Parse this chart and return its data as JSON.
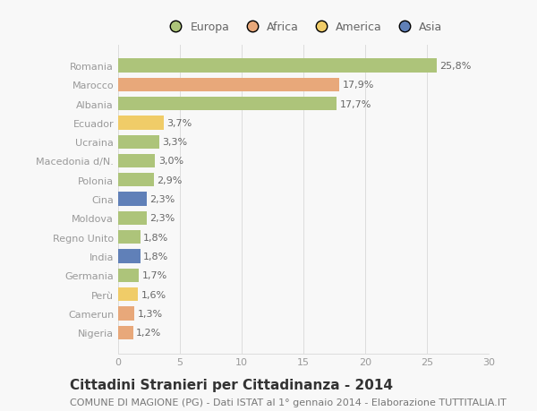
{
  "categories": [
    "Romania",
    "Marocco",
    "Albania",
    "Ecuador",
    "Ucraina",
    "Macedonia d/N.",
    "Polonia",
    "Cina",
    "Moldova",
    "Regno Unito",
    "India",
    "Germania",
    "Perù",
    "Camerun",
    "Nigeria"
  ],
  "values": [
    25.8,
    17.9,
    17.7,
    3.7,
    3.3,
    3.0,
    2.9,
    2.3,
    2.3,
    1.8,
    1.8,
    1.7,
    1.6,
    1.3,
    1.2
  ],
  "labels": [
    "25,8%",
    "17,9%",
    "17,7%",
    "3,7%",
    "3,3%",
    "3,0%",
    "2,9%",
    "2,3%",
    "2,3%",
    "1,8%",
    "1,8%",
    "1,7%",
    "1,6%",
    "1,3%",
    "1,2%"
  ],
  "continents": [
    "Europa",
    "Africa",
    "Europa",
    "America",
    "Europa",
    "Europa",
    "Europa",
    "Asia",
    "Europa",
    "Europa",
    "Asia",
    "Europa",
    "America",
    "Africa",
    "Africa"
  ],
  "continent_colors": {
    "Europa": "#adc47a",
    "Africa": "#e8a87a",
    "America": "#f0cc68",
    "Asia": "#6080b8"
  },
  "legend_order": [
    "Europa",
    "Africa",
    "America",
    "Asia"
  ],
  "legend_colors": [
    "#adc47a",
    "#e8a87a",
    "#f0cc68",
    "#6080b8"
  ],
  "title": "Cittadini Stranieri per Cittadinanza - 2014",
  "subtitle": "COMUNE DI MAGIONE (PG) - Dati ISTAT al 1° gennaio 2014 - Elaborazione TUTTITALIA.IT",
  "xlim": [
    0,
    30
  ],
  "xticks": [
    0,
    5,
    10,
    15,
    20,
    25,
    30
  ],
  "background_color": "#f8f8f8",
  "bar_height": 0.72,
  "title_fontsize": 11,
  "subtitle_fontsize": 8,
  "label_fontsize": 8,
  "tick_fontsize": 8,
  "legend_fontsize": 9
}
